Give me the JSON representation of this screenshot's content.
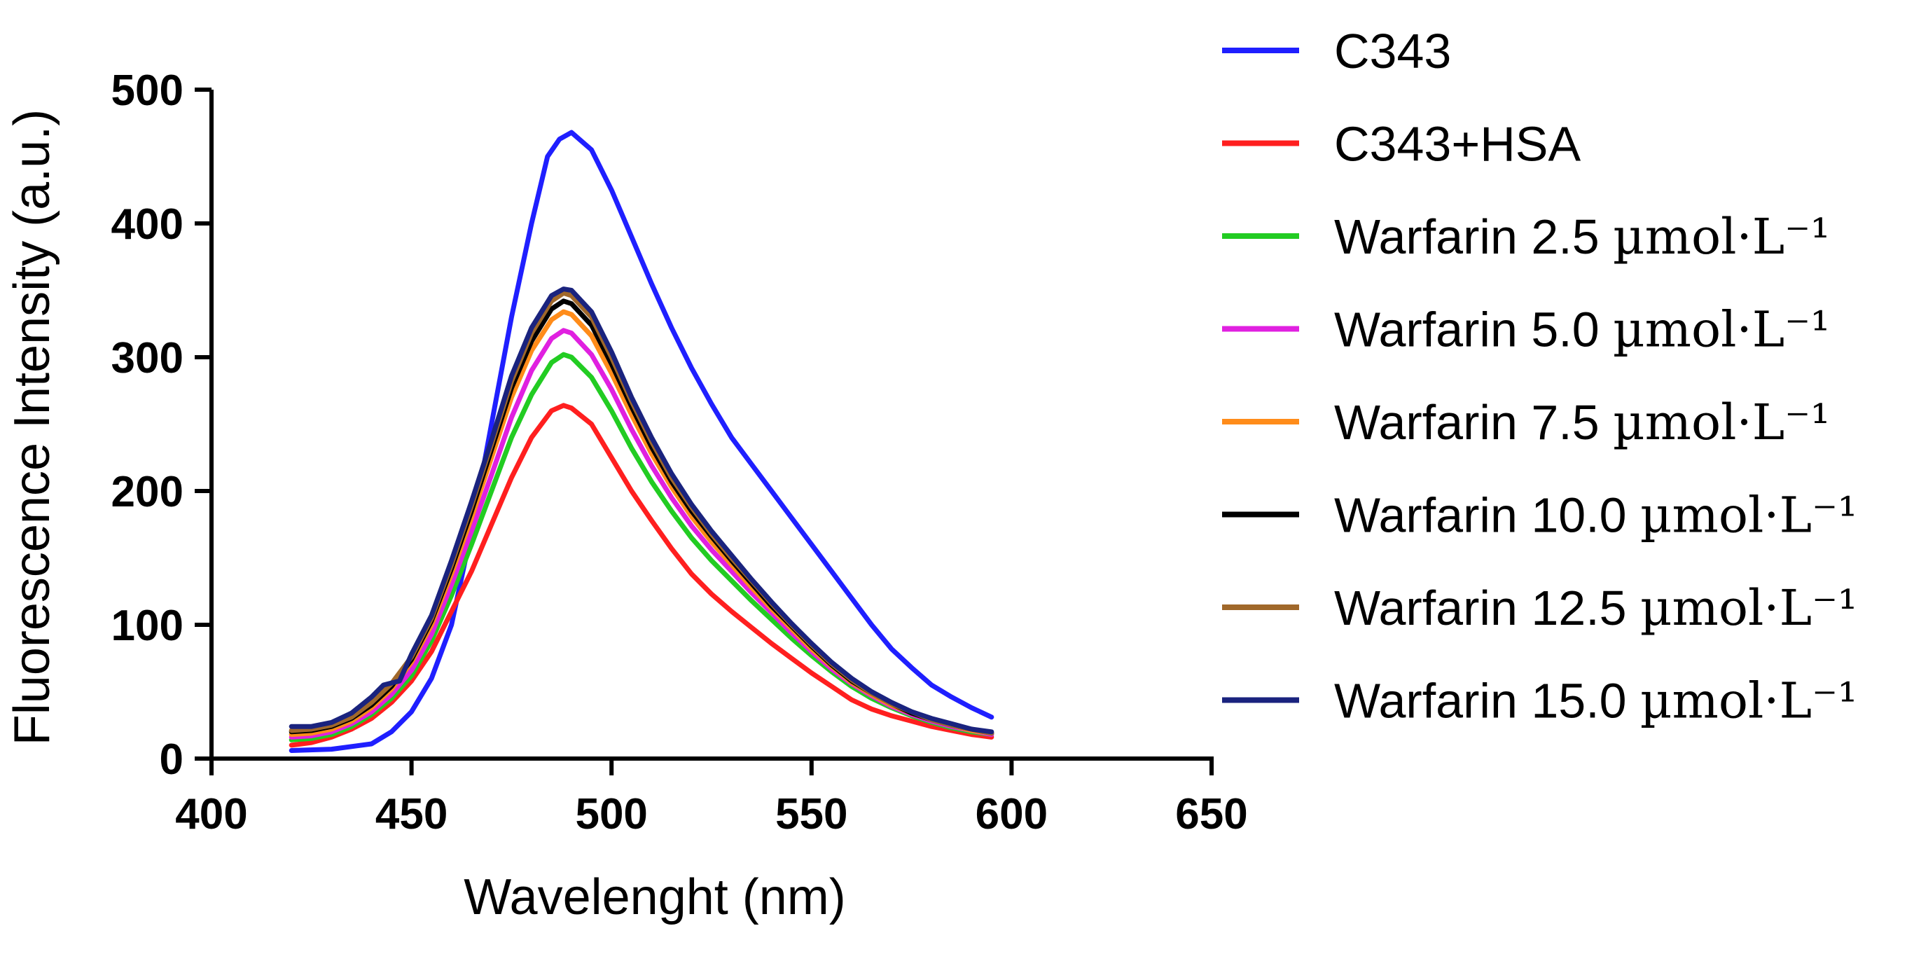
{
  "chart_data": {
    "type": "line",
    "title": "",
    "xlabel": "Wavelenght (nm)",
    "ylabel": "Fluorescence Intensity (a.u.)",
    "xlim": [
      400,
      650
    ],
    "ylim": [
      0,
      500
    ],
    "xticks": [
      "400",
      "450",
      "500",
      "550",
      "600",
      "650"
    ],
    "yticks": [
      "0",
      "100",
      "200",
      "300",
      "400",
      "500"
    ],
    "grid": false,
    "legend_position": "right",
    "series": [
      {
        "name": "C343",
        "legend_unit": "",
        "color": "#1f1fff",
        "points": [
          [
            420,
            6
          ],
          [
            430,
            7
          ],
          [
            440,
            11
          ],
          [
            445,
            20
          ],
          [
            450,
            35
          ],
          [
            455,
            60
          ],
          [
            460,
            100
          ],
          [
            465,
            170
          ],
          [
            470,
            250
          ],
          [
            475,
            330
          ],
          [
            480,
            400
          ],
          [
            484,
            450
          ],
          [
            487,
            463
          ],
          [
            490,
            468
          ],
          [
            495,
            455
          ],
          [
            500,
            425
          ],
          [
            505,
            390
          ],
          [
            510,
            355
          ],
          [
            515,
            322
          ],
          [
            520,
            292
          ],
          [
            525,
            265
          ],
          [
            530,
            240
          ],
          [
            535,
            220
          ],
          [
            540,
            200
          ],
          [
            545,
            180
          ],
          [
            550,
            160
          ],
          [
            555,
            140
          ],
          [
            560,
            120
          ],
          [
            565,
            100
          ],
          [
            570,
            82
          ],
          [
            575,
            68
          ],
          [
            580,
            55
          ],
          [
            585,
            46
          ],
          [
            590,
            38
          ],
          [
            595,
            31
          ]
        ]
      },
      {
        "name": "C343+HSA",
        "legend_unit": "",
        "color": "#ff1f1f",
        "points": [
          [
            420,
            10
          ],
          [
            425,
            12
          ],
          [
            430,
            16
          ],
          [
            435,
            22
          ],
          [
            440,
            30
          ],
          [
            445,
            42
          ],
          [
            450,
            58
          ],
          [
            455,
            80
          ],
          [
            460,
            110
          ],
          [
            465,
            140
          ],
          [
            470,
            175
          ],
          [
            475,
            210
          ],
          [
            480,
            240
          ],
          [
            485,
            260
          ],
          [
            488,
            264
          ],
          [
            490,
            262
          ],
          [
            495,
            250
          ],
          [
            500,
            225
          ],
          [
            505,
            200
          ],
          [
            510,
            178
          ],
          [
            515,
            157
          ],
          [
            520,
            138
          ],
          [
            525,
            123
          ],
          [
            530,
            110
          ],
          [
            535,
            98
          ],
          [
            540,
            86
          ],
          [
            545,
            75
          ],
          [
            550,
            64
          ],
          [
            555,
            54
          ],
          [
            560,
            44
          ],
          [
            565,
            37
          ],
          [
            570,
            32
          ],
          [
            575,
            28
          ],
          [
            580,
            24
          ],
          [
            585,
            21
          ],
          [
            590,
            18
          ],
          [
            595,
            16
          ]
        ]
      },
      {
        "name": "Warfarin 2.5 ",
        "legend_unit": "µmol·L⁻¹",
        "color": "#22cc22",
        "points": [
          [
            420,
            14
          ],
          [
            425,
            15
          ],
          [
            430,
            18
          ],
          [
            435,
            24
          ],
          [
            440,
            33
          ],
          [
            445,
            45
          ],
          [
            450,
            62
          ],
          [
            455,
            88
          ],
          [
            460,
            122
          ],
          [
            465,
            160
          ],
          [
            470,
            200
          ],
          [
            475,
            240
          ],
          [
            480,
            272
          ],
          [
            485,
            296
          ],
          [
            488,
            302
          ],
          [
            490,
            300
          ],
          [
            495,
            285
          ],
          [
            500,
            260
          ],
          [
            505,
            232
          ],
          [
            510,
            207
          ],
          [
            515,
            185
          ],
          [
            520,
            165
          ],
          [
            525,
            148
          ],
          [
            530,
            133
          ],
          [
            535,
            118
          ],
          [
            540,
            104
          ],
          [
            545,
            90
          ],
          [
            550,
            77
          ],
          [
            555,
            65
          ],
          [
            560,
            54
          ],
          [
            565,
            45
          ],
          [
            570,
            38
          ],
          [
            575,
            32
          ],
          [
            580,
            27
          ],
          [
            585,
            23
          ],
          [
            590,
            20
          ],
          [
            595,
            18
          ]
        ]
      },
      {
        "name": "Warfarin 5.0 ",
        "legend_unit": "µmol·L⁻¹",
        "color": "#e020e0",
        "points": [
          [
            420,
            16
          ],
          [
            425,
            17
          ],
          [
            430,
            20
          ],
          [
            435,
            26
          ],
          [
            440,
            35
          ],
          [
            445,
            48
          ],
          [
            450,
            66
          ],
          [
            455,
            93
          ],
          [
            460,
            130
          ],
          [
            465,
            170
          ],
          [
            470,
            212
          ],
          [
            475,
            255
          ],
          [
            480,
            290
          ],
          [
            485,
            314
          ],
          [
            488,
            320
          ],
          [
            490,
            318
          ],
          [
            495,
            302
          ],
          [
            500,
            276
          ],
          [
            505,
            246
          ],
          [
            510,
            219
          ],
          [
            515,
            195
          ],
          [
            520,
            174
          ],
          [
            525,
            156
          ],
          [
            530,
            140
          ],
          [
            535,
            124
          ],
          [
            540,
            109
          ],
          [
            545,
            94
          ],
          [
            550,
            80
          ],
          [
            555,
            67
          ],
          [
            560,
            56
          ],
          [
            565,
            47
          ],
          [
            570,
            39
          ],
          [
            575,
            33
          ],
          [
            580,
            28
          ],
          [
            585,
            24
          ],
          [
            590,
            21
          ],
          [
            595,
            18
          ]
        ]
      },
      {
        "name": "Warfarin 7.5 ",
        "legend_unit": "µmol·L⁻¹",
        "color": "#ff8c1a",
        "points": [
          [
            420,
            18
          ],
          [
            425,
            19
          ],
          [
            430,
            22
          ],
          [
            435,
            28
          ],
          [
            440,
            38
          ],
          [
            445,
            52
          ],
          [
            450,
            72
          ],
          [
            455,
            100
          ],
          [
            460,
            138
          ],
          [
            465,
            180
          ],
          [
            470,
            225
          ],
          [
            475,
            270
          ],
          [
            480,
            305
          ],
          [
            485,
            328
          ],
          [
            488,
            334
          ],
          [
            490,
            332
          ],
          [
            495,
            316
          ],
          [
            500,
            288
          ],
          [
            505,
            257
          ],
          [
            510,
            228
          ],
          [
            515,
            203
          ],
          [
            520,
            181
          ],
          [
            525,
            162
          ],
          [
            530,
            145
          ],
          [
            535,
            128
          ],
          [
            540,
            112
          ],
          [
            545,
            97
          ],
          [
            550,
            82
          ],
          [
            555,
            69
          ],
          [
            560,
            57
          ],
          [
            565,
            48
          ],
          [
            570,
            40
          ],
          [
            575,
            34
          ],
          [
            580,
            29
          ],
          [
            585,
            25
          ],
          [
            590,
            21
          ],
          [
            595,
            19
          ]
        ]
      },
      {
        "name": "Warfarin 10.0 ",
        "legend_unit": "µmol·L⁻¹",
        "color": "#000000",
        "points": [
          [
            420,
            20
          ],
          [
            425,
            21
          ],
          [
            430,
            24
          ],
          [
            435,
            30
          ],
          [
            440,
            40
          ],
          [
            445,
            54
          ],
          [
            450,
            74
          ],
          [
            455,
            103
          ],
          [
            460,
            142
          ],
          [
            465,
            185
          ],
          [
            470,
            231
          ],
          [
            475,
            277
          ],
          [
            480,
            312
          ],
          [
            485,
            336
          ],
          [
            488,
            342
          ],
          [
            490,
            340
          ],
          [
            495,
            324
          ],
          [
            500,
            295
          ],
          [
            505,
            263
          ],
          [
            510,
            233
          ],
          [
            515,
            207
          ],
          [
            520,
            185
          ],
          [
            525,
            166
          ],
          [
            530,
            148
          ],
          [
            535,
            131
          ],
          [
            540,
            114
          ],
          [
            545,
            99
          ],
          [
            550,
            84
          ],
          [
            555,
            70
          ],
          [
            560,
            58
          ],
          [
            565,
            49
          ],
          [
            570,
            41
          ],
          [
            575,
            34
          ],
          [
            580,
            29
          ],
          [
            585,
            25
          ],
          [
            590,
            22
          ],
          [
            595,
            19
          ]
        ]
      },
      {
        "name": "Warfarin 12.5 ",
        "legend_unit": "µmol·L⁻¹",
        "color": "#a0682a",
        "points": [
          [
            420,
            21
          ],
          [
            425,
            22
          ],
          [
            430,
            25
          ],
          [
            435,
            31
          ],
          [
            440,
            42
          ],
          [
            445,
            56
          ],
          [
            450,
            76
          ],
          [
            455,
            105
          ],
          [
            460,
            145
          ],
          [
            465,
            189
          ],
          [
            470,
            235
          ],
          [
            475,
            282
          ],
          [
            480,
            318
          ],
          [
            485,
            342
          ],
          [
            488,
            348
          ],
          [
            490,
            346
          ],
          [
            495,
            330
          ],
          [
            500,
            300
          ],
          [
            505,
            267
          ],
          [
            510,
            237
          ],
          [
            515,
            210
          ],
          [
            520,
            188
          ],
          [
            525,
            168
          ],
          [
            530,
            150
          ],
          [
            535,
            133
          ],
          [
            540,
            116
          ],
          [
            545,
            100
          ],
          [
            550,
            85
          ],
          [
            555,
            71
          ],
          [
            560,
            59
          ],
          [
            565,
            49
          ],
          [
            570,
            41
          ],
          [
            575,
            35
          ],
          [
            580,
            29
          ],
          [
            585,
            25
          ],
          [
            590,
            22
          ],
          [
            595,
            19
          ]
        ]
      },
      {
        "name": "Warfarin 15.0 ",
        "legend_unit": "µmol·L⁻¹",
        "color": "#1a237e",
        "points": [
          [
            420,
            24
          ],
          [
            425,
            24
          ],
          [
            430,
            27
          ],
          [
            435,
            34
          ],
          [
            440,
            46
          ],
          [
            443,
            55
          ],
          [
            447,
            58
          ],
          [
            450,
            78
          ],
          [
            455,
            107
          ],
          [
            460,
            148
          ],
          [
            465,
            192
          ],
          [
            470,
            238
          ],
          [
            475,
            286
          ],
          [
            480,
            322
          ],
          [
            485,
            346
          ],
          [
            488,
            351
          ],
          [
            490,
            350
          ],
          [
            495,
            334
          ],
          [
            500,
            304
          ],
          [
            505,
            270
          ],
          [
            510,
            240
          ],
          [
            515,
            213
          ],
          [
            520,
            190
          ],
          [
            525,
            170
          ],
          [
            530,
            152
          ],
          [
            535,
            134
          ],
          [
            540,
            117
          ],
          [
            545,
            101
          ],
          [
            550,
            86
          ],
          [
            555,
            72
          ],
          [
            560,
            60
          ],
          [
            565,
            50
          ],
          [
            570,
            42
          ],
          [
            575,
            35
          ],
          [
            580,
            30
          ],
          [
            585,
            26
          ],
          [
            590,
            22
          ],
          [
            595,
            20
          ]
        ]
      }
    ]
  }
}
